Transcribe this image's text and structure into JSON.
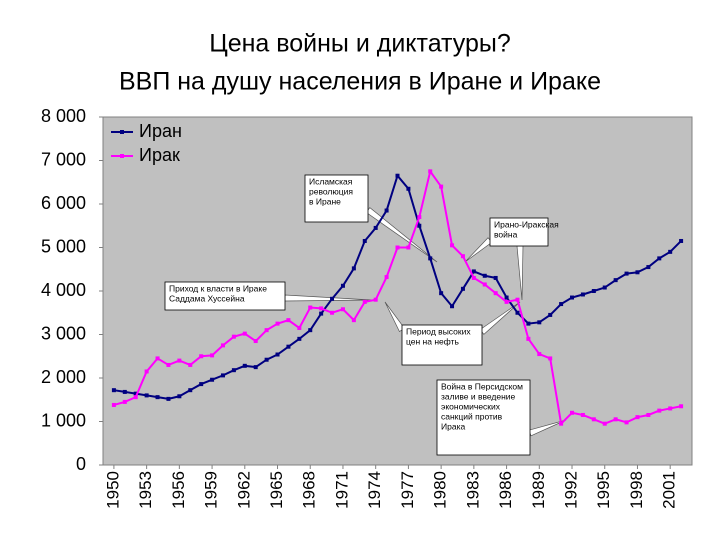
{
  "chart_data": {
    "type": "line",
    "title": [
      "Цена войны и диктатуры?",
      "ВВП на душу населения в Иране и Ираке"
    ],
    "x": [
      1950,
      1951,
      1952,
      1953,
      1954,
      1955,
      1956,
      1957,
      1958,
      1959,
      1960,
      1961,
      1962,
      1963,
      1964,
      1965,
      1966,
      1967,
      1968,
      1969,
      1970,
      1971,
      1972,
      1973,
      1974,
      1975,
      1976,
      1977,
      1978,
      1979,
      1980,
      1981,
      1982,
      1983,
      1984,
      1985,
      1986,
      1987,
      1988,
      1989,
      1990,
      1991,
      1992,
      1993,
      1994,
      1995,
      1996,
      1997,
      1998,
      1999,
      2000,
      2001,
      2002
    ],
    "series": [
      {
        "name": "Иран",
        "color": "#000080",
        "values": [
          1720,
          1680,
          1640,
          1600,
          1560,
          1520,
          1580,
          1720,
          1860,
          1960,
          2060,
          2180,
          2280,
          2250,
          2420,
          2540,
          2720,
          2900,
          3100,
          3480,
          3820,
          4120,
          4520,
          5150,
          5450,
          5850,
          6650,
          6350,
          5500,
          4750,
          3950,
          3650,
          4050,
          4450,
          4350,
          4300,
          3850,
          3500,
          3250,
          3280,
          3450,
          3700,
          3850,
          3920,
          4000,
          4080,
          4250,
          4400,
          4430,
          4550,
          4750,
          4900,
          5150
        ]
      },
      {
        "name": "Ирак",
        "color": "#ff00ff",
        "values": [
          1380,
          1450,
          1560,
          2150,
          2450,
          2300,
          2400,
          2300,
          2500,
          2520,
          2750,
          2950,
          3020,
          2850,
          3100,
          3250,
          3330,
          3150,
          3620,
          3600,
          3500,
          3580,
          3330,
          3750,
          3800,
          4320,
          5000,
          5000,
          5700,
          6750,
          6400,
          5050,
          4800,
          4300,
          4150,
          3950,
          3750,
          3800,
          2900,
          2550,
          2450,
          950,
          1200,
          1150,
          1050,
          950,
          1050,
          980,
          1100,
          1150,
          1250,
          1300,
          1350
        ]
      }
    ],
    "xlim": [
      1949,
      2003
    ],
    "xticks": [
      1950,
      1953,
      1956,
      1959,
      1962,
      1965,
      1968,
      1971,
      1974,
      1977,
      1980,
      1983,
      1986,
      1989,
      1992,
      1995,
      1998,
      2001
    ],
    "ylim": [
      0,
      8000
    ],
    "yticks": [
      0,
      {
        "value": 1000,
        "label": "1 000"
      },
      {
        "value": 2000,
        "label": "2 000"
      },
      {
        "value": 3000,
        "label": "3 000"
      },
      {
        "value": 4000,
        "label": "4 000"
      },
      {
        "value": 5000,
        "label": "5 000"
      },
      {
        "value": 6000,
        "label": "6 000"
      },
      {
        "value": 7000,
        "label": "7 000"
      },
      {
        "value": 8000,
        "label": "8 000"
      }
    ],
    "grid": false,
    "legend": "top-left",
    "annotations": [
      {
        "lines": [
          "Исламская",
          "революция",
          "в Иране"
        ]
      },
      {
        "lines": [
          "Ирано-Иракская",
          "война"
        ]
      },
      {
        "lines": [
          "Приход к власти в Ираке",
          "Саддама Хуссейна"
        ]
      },
      {
        "lines": [
          "Период высоких",
          "цен на нефть"
        ]
      },
      {
        "lines": [
          "Война в Персидском",
          "заливе и введение",
          "экономических",
          "санкций против",
          "Ирака"
        ]
      }
    ]
  }
}
